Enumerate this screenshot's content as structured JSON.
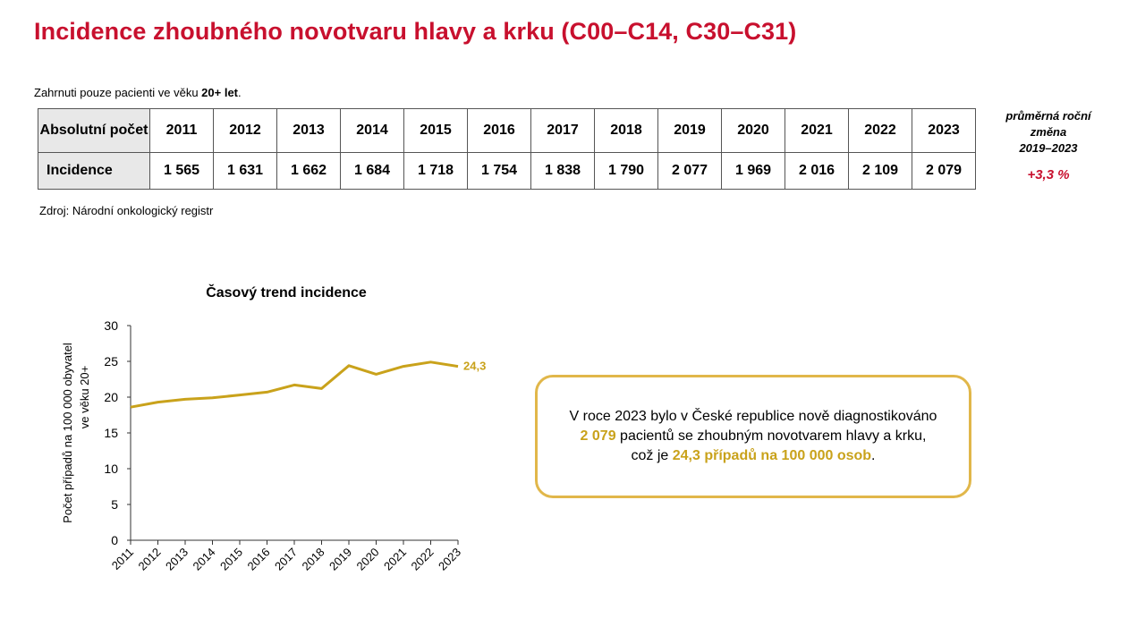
{
  "title": "Incidence zhoubného novotvaru hlavy a krku (C00–C14, C30–C31)",
  "note": {
    "text": "Zahrnuti pouze pacienti ve věku ",
    "bold": "20+ let",
    "end": "."
  },
  "table": {
    "header_label": "Absolutní počet",
    "row_label": "Incidence",
    "years": [
      "2011",
      "2012",
      "2013",
      "2014",
      "2015",
      "2016",
      "2017",
      "2018",
      "2019",
      "2020",
      "2021",
      "2022",
      "2023"
    ],
    "values": [
      "1 565",
      "1 631",
      "1 662",
      "1 684",
      "1 718",
      "1 754",
      "1 838",
      "1 790",
      "2 077",
      "1 969",
      "2 016",
      "2 109",
      "2 079"
    ]
  },
  "avg_change": {
    "label_line1": "průměrná roční",
    "label_line2": "změna",
    "label_line3": "2019–2023",
    "value": "+3,3 %"
  },
  "source": "Zdroj: Národní onkologický registr",
  "colors": {
    "accent_red": "#c8102e",
    "line": "#c9a21b",
    "callout_border": "#e1b74a"
  },
  "chart_data": {
    "type": "line",
    "title": "Časový trend incidence",
    "ylabel_line1": "Počet případů na 100 000 obyvatel",
    "ylabel_line2": "ve věku 20+",
    "x": [
      "2011",
      "2012",
      "2013",
      "2014",
      "2015",
      "2016",
      "2017",
      "2018",
      "2019",
      "2020",
      "2021",
      "2022",
      "2023"
    ],
    "series": [
      {
        "values": [
          18.6,
          19.3,
          19.7,
          19.9,
          20.3,
          20.7,
          21.7,
          21.2,
          24.4,
          23.2,
          24.3,
          24.9,
          24.3
        ]
      }
    ],
    "last_label": "24,3",
    "ylim": [
      0,
      30
    ],
    "yticks": [
      0,
      5,
      10,
      15,
      20,
      25,
      30
    ],
    "grid": false
  },
  "callout": {
    "p1": "V roce 2023 bylo v České republice nově diagnostikováno",
    "h1": "2 079",
    "p2": " pacientů se zhoubným novotvarem hlavy a krku,",
    "p3": "což je ",
    "h2": "24,3 případů na 100 000 osob",
    "p4": "."
  }
}
